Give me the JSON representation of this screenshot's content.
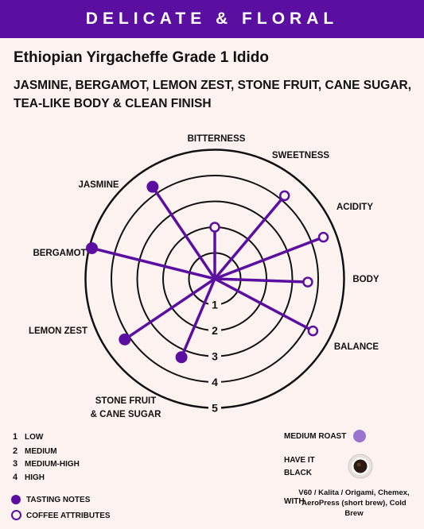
{
  "banner": "DELICATE & FLORAL",
  "title": "Ethiopian Yirgacheffe Grade 1 Idido",
  "notes": "JASMINE, BERGAMOT, LEMON ZEST, STONE FRUIT, CANE SUGAR, TEA-LIKE BODY & CLEAN FINISH",
  "chart": {
    "ring_labels": [
      "1",
      "2",
      "3",
      "4",
      "5"
    ],
    "axes": [
      {
        "label": "BITTERNESS",
        "value": 2,
        "type": "attribute"
      },
      {
        "label": "SWEETNESS",
        "value": 4.2,
        "type": "attribute"
      },
      {
        "label": "ACIDITY",
        "value": 4.5,
        "type": "attribute"
      },
      {
        "label": "BODY",
        "value": 3.6,
        "type": "attribute"
      },
      {
        "label": "BALANCE",
        "value": 4.3,
        "type": "attribute"
      },
      {
        "label": "STONE FRUIT & CANE SUGAR",
        "value": 3.3,
        "type": "tasting"
      },
      {
        "label": "LEMON ZEST",
        "value": 4.2,
        "type": "tasting"
      },
      {
        "label": "BERGAMOT",
        "value": 4.9,
        "type": "tasting"
      },
      {
        "label": "JASMINE",
        "value": 4.3,
        "type": "tasting"
      }
    ]
  },
  "legend": {
    "levels": [
      {
        "num": "1",
        "label": "LOW"
      },
      {
        "num": "2",
        "label": "MEDIUM"
      },
      {
        "num": "3",
        "label": "MEDIUM-HIGH"
      },
      {
        "num": "4",
        "label": "HIGH"
      }
    ],
    "tasting_notes": "TASTING NOTES",
    "coffee_attributes": "COFFEE ATTRIBUTES"
  },
  "roast": {
    "label": "MEDIUM  ROAST",
    "color": "#9a72cf"
  },
  "serve": {
    "label_line1": "HAVE IT",
    "label_line2": "BLACK",
    "icon": "coffee-cup-icon"
  },
  "brew": {
    "label": "WITH",
    "methods": "V60 / Kalita / Origami, Chemex, AeroPress (short brew), Cold Brew"
  },
  "colors": {
    "purple": "#5b0fa0",
    "light_purple": "#9a72cf",
    "background": "#fcf2ef"
  }
}
